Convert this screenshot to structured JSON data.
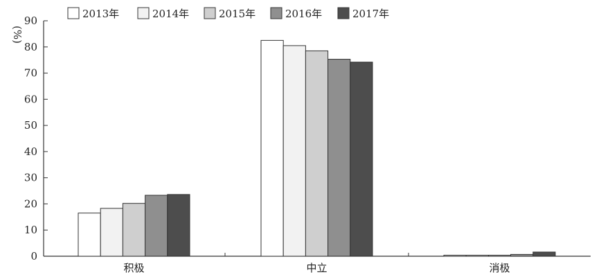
{
  "chart_data": {
    "type": "bar",
    "categories": [
      "积极",
      "中立",
      "消极"
    ],
    "series": [
      {
        "name": "2013年",
        "values": [
          16.5,
          82.5,
          0.3
        ],
        "color": "#ffffff"
      },
      {
        "name": "2014年",
        "values": [
          18.3,
          80.5,
          0.3
        ],
        "color": "#f2f2f2"
      },
      {
        "name": "2015年",
        "values": [
          20.2,
          78.5,
          0.4
        ],
        "color": "#cfcfcf"
      },
      {
        "name": "2016年",
        "values": [
          23.3,
          75.3,
          0.7
        ],
        "color": "#8f8f8f"
      },
      {
        "name": "2017年",
        "values": [
          23.6,
          74.2,
          1.6
        ],
        "color": "#4d4d4d"
      }
    ],
    "ylabel": "(%)",
    "ylim": [
      0,
      90
    ],
    "yticks": [
      0,
      10,
      20,
      30,
      40,
      50,
      60,
      70,
      80,
      90
    ],
    "grid": false,
    "legend_position": "top-left"
  }
}
